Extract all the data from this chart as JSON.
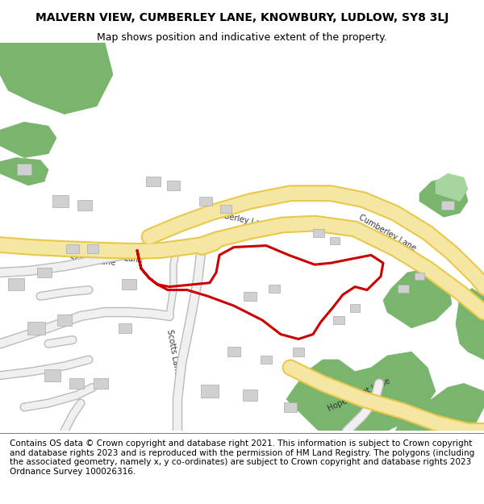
{
  "title": "MALVERN VIEW, CUMBERLEY LANE, KNOWBURY, LUDLOW, SY8 3LJ",
  "subtitle": "Map shows position and indicative extent of the property.",
  "footer": "Contains OS data © Crown copyright and database right 2021. This information is subject to Crown copyright and database rights 2023 and is reproduced with the permission of HM Land Registry. The polygons (including the associated geometry, namely x, y co-ordinates) are subject to Crown copyright and database rights 2023 Ordnance Survey 100026316.",
  "bg_color": "#f5f5f0",
  "map_bg": "#ffffff",
  "road_main_color": "#f5e6a3",
  "road_main_edge": "#e8c84a",
  "road_minor_color": "#ffffff",
  "road_minor_edge": "#cccccc",
  "green_color": "#7ab56e",
  "green_light_color": "#a8d4a0",
  "red_boundary_color": "#cc0000",
  "title_fontsize": 10,
  "subtitle_fontsize": 9,
  "footer_fontsize": 7.5
}
